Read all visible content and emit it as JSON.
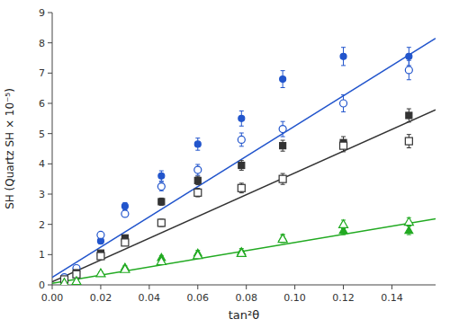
{
  "chart_data": {
    "type": "scatter",
    "xlabel": "tan²θ",
    "ylabel": "SH (Quartz SH × 10⁻⁵)",
    "xlim": [
      0.0,
      0.158
    ],
    "ylim": [
      0.0,
      9.0
    ],
    "xticks": [
      {
        "value": 0.0,
        "label": "0.00"
      },
      {
        "value": 0.02,
        "label": "0.02"
      },
      {
        "value": 0.04,
        "label": "0.04"
      },
      {
        "value": 0.06,
        "label": "0.06"
      },
      {
        "value": 0.08,
        "label": "0.08"
      },
      {
        "value": 0.1,
        "label": "0.10"
      },
      {
        "value": 0.12,
        "label": "0.12"
      },
      {
        "value": 0.14,
        "label": "0.14"
      }
    ],
    "yticks": [
      0,
      1,
      2,
      3,
      4,
      5,
      6,
      7,
      8,
      9
    ],
    "grid": false,
    "series": [
      {
        "type": "line",
        "color": "#2255cc",
        "x": [
          0.0,
          0.158
        ],
        "values": [
          0.25,
          8.15
        ]
      },
      {
        "type": "line",
        "color": "#333333",
        "x": [
          0.0,
          0.158
        ],
        "values": [
          0.1,
          5.788
        ]
      },
      {
        "type": "line",
        "color": "#22aa22",
        "x": [
          0.0,
          0.158
        ],
        "values": [
          0.05,
          2.183
        ]
      },
      {
        "type": "scatter",
        "color": "#2255cc",
        "marker": "circle",
        "x": [
          0.01,
          0.02,
          0.03,
          0.045,
          0.06,
          0.078,
          0.095,
          0.12,
          0.147
        ],
        "values": [
          0.55,
          1.45,
          2.6,
          3.6,
          4.65,
          5.5,
          6.8,
          7.55,
          7.55
        ],
        "errors": [
          0.07,
          0.09,
          0.12,
          0.17,
          0.2,
          0.25,
          0.28,
          0.3,
          0.3
        ]
      },
      {
        "type": "scatter",
        "color": "#2255cc",
        "marker": "open-circle",
        "x": [
          0.005,
          0.01,
          0.02,
          0.03,
          0.045,
          0.06,
          0.078,
          0.095,
          0.12,
          0.147
        ],
        "values": [
          0.25,
          0.55,
          1.65,
          2.35,
          3.25,
          3.8,
          4.8,
          5.15,
          6.0,
          7.1
        ],
        "errors": [
          0.05,
          0.06,
          0.08,
          0.1,
          0.14,
          0.18,
          0.22,
          0.25,
          0.28,
          0.32
        ]
      },
      {
        "type": "scatter",
        "color": "#333333",
        "marker": "square",
        "x": [
          0.01,
          0.02,
          0.03,
          0.045,
          0.06,
          0.078,
          0.095,
          0.12,
          0.147
        ],
        "values": [
          0.4,
          1.05,
          1.55,
          2.75,
          3.45,
          3.95,
          4.6,
          4.7,
          5.6
        ],
        "errors": [
          0.05,
          0.07,
          0.09,
          0.12,
          0.14,
          0.16,
          0.18,
          0.2,
          0.22
        ]
      },
      {
        "type": "scatter",
        "color": "#333333",
        "marker": "open-square",
        "x": [
          0.005,
          0.01,
          0.02,
          0.03,
          0.045,
          0.06,
          0.078,
          0.095,
          0.12,
          0.147
        ],
        "values": [
          0.18,
          0.35,
          0.95,
          1.4,
          2.05,
          3.05,
          3.2,
          3.5,
          4.6,
          4.75
        ],
        "errors": [
          0.04,
          0.05,
          0.07,
          0.09,
          0.12,
          0.14,
          0.16,
          0.18,
          0.2,
          0.22
        ]
      },
      {
        "type": "scatter",
        "color": "#22aa22",
        "marker": "triangle",
        "x": [
          0.01,
          0.02,
          0.03,
          0.045,
          0.06,
          0.078,
          0.095,
          0.12,
          0.147
        ],
        "values": [
          0.12,
          0.38,
          0.58,
          0.9,
          1.05,
          1.1,
          1.55,
          1.8,
          1.8
        ],
        "errors": [
          0.03,
          0.04,
          0.05,
          0.07,
          0.09,
          0.1,
          0.12,
          0.14,
          0.14
        ]
      },
      {
        "type": "scatter",
        "color": "#22aa22",
        "marker": "open-triangle",
        "x": [
          0.005,
          0.01,
          0.02,
          0.03,
          0.045,
          0.06,
          0.078,
          0.095,
          0.12,
          0.147
        ],
        "values": [
          0.07,
          0.12,
          0.38,
          0.52,
          0.78,
          0.98,
          1.05,
          1.52,
          2.0,
          2.08
        ],
        "errors": [
          0.03,
          0.03,
          0.04,
          0.05,
          0.07,
          0.09,
          0.1,
          0.12,
          0.14,
          0.14
        ]
      }
    ]
  }
}
